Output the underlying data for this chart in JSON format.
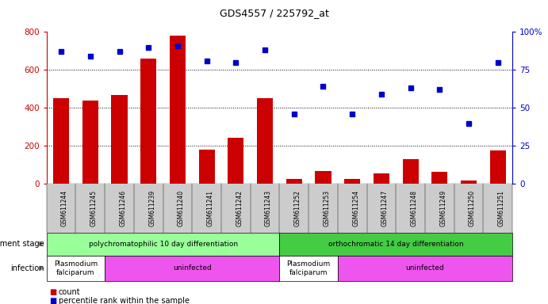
{
  "title": "GDS4557 / 225792_at",
  "samples": [
    "GSM611244",
    "GSM611245",
    "GSM611246",
    "GSM611239",
    "GSM611240",
    "GSM611241",
    "GSM611242",
    "GSM611243",
    "GSM611252",
    "GSM611253",
    "GSM611254",
    "GSM611247",
    "GSM611248",
    "GSM611249",
    "GSM611250",
    "GSM611251"
  ],
  "counts": [
    450,
    440,
    470,
    660,
    780,
    180,
    245,
    450,
    25,
    70,
    25,
    55,
    130,
    65,
    20,
    175
  ],
  "percentiles": [
    87,
    84,
    87,
    90,
    91,
    81,
    80,
    88,
    46,
    64,
    46,
    59,
    63,
    62,
    40,
    80
  ],
  "bar_color": "#cc0000",
  "dot_color": "#0000cc",
  "ylim_left": [
    0,
    800
  ],
  "ylim_right": [
    0,
    100
  ],
  "yticks_left": [
    0,
    200,
    400,
    600,
    800
  ],
  "yticks_right": [
    0,
    25,
    50,
    75,
    100
  ],
  "yticklabels_right": [
    "0",
    "25",
    "50",
    "75",
    "100%"
  ],
  "dev_stage_groups": [
    {
      "label": "polychromatophilic 10 day differentiation",
      "start": 0,
      "end": 8,
      "color": "#99ff99"
    },
    {
      "label": "orthochromatic 14 day differentiation",
      "start": 8,
      "end": 16,
      "color": "#44cc44"
    }
  ],
  "infection_groups": [
    {
      "label": "Plasmodium\nfalciparum",
      "start": 0,
      "end": 2,
      "color": "#ffffff"
    },
    {
      "label": "uninfected",
      "start": 2,
      "end": 8,
      "color": "#ee55ee"
    },
    {
      "label": "Plasmodium\nfalciparum",
      "start": 8,
      "end": 10,
      "color": "#ffffff"
    },
    {
      "label": "uninfected",
      "start": 10,
      "end": 16,
      "color": "#ee55ee"
    }
  ],
  "grid_lines": [
    200,
    400,
    600
  ],
  "tick_bg_color": "#cccccc",
  "figure_bg": "#ffffff"
}
